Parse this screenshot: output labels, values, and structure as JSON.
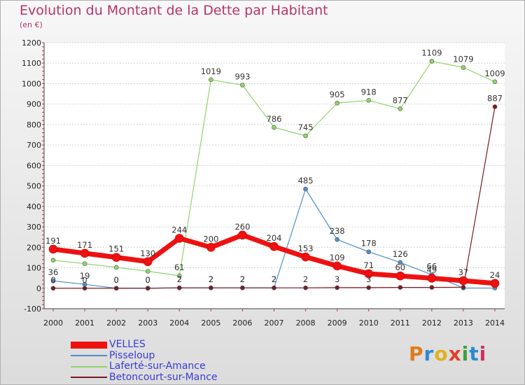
{
  "title": "Evolution du Montant de la Dette par Habitant",
  "unit_label": "(en €)",
  "logo": {
    "text": "Proxiti",
    "colors": [
      "#e07b1a",
      "#2a8ad6",
      "#e0b020",
      "#e0402a",
      "#3aa040",
      "#2a8ad6",
      "#d03060"
    ]
  },
  "chart_data": {
    "type": "line",
    "title": "Evolution du Montant de la Dette par Habitant",
    "ylabel": "(en €)",
    "xlabel": "",
    "ylim": [
      -100,
      1200
    ],
    "yticks": [
      -100,
      0,
      100,
      200,
      300,
      400,
      500,
      600,
      700,
      800,
      900,
      1000,
      1100,
      1200
    ],
    "grid": "horizontal",
    "legend_position": "bottom-left",
    "categories": [
      "2000",
      "2001",
      "2002",
      "2003",
      "2004",
      "2005",
      "2006",
      "2007",
      "2008",
      "2009",
      "2010",
      "2011",
      "2012",
      "2013",
      "2014"
    ],
    "series": [
      {
        "name": "Pisseloup",
        "color": "#4f8fc8",
        "width": 1.2,
        "values": [
          36,
          19,
          0,
          0,
          2,
          2,
          2,
          2,
          485,
          238,
          178,
          126,
          66,
          1,
          1
        ],
        "labels": [
          "36",
          "19",
          "0",
          "0",
          "2",
          "2",
          "2",
          "2",
          "485",
          "238",
          "178",
          "126",
          "66",
          "",
          ""
        ]
      },
      {
        "name": "Laferté-sur-Amance",
        "color": "#8fd46a",
        "width": 1.2,
        "values": [
          137,
          120,
          102,
          83,
          61,
          1019,
          993,
          786,
          745,
          905,
          918,
          877,
          1109,
          1079,
          1009
        ],
        "labels": [
          "",
          "",
          "",
          "",
          "61",
          "1019",
          "993",
          "786",
          "745",
          "905",
          "918",
          "877",
          "1109",
          "1079",
          "1009"
        ]
      },
      {
        "name": "Betoncourt-sur-Mance",
        "color": "#7a1a24",
        "width": 1.2,
        "values": [
          0,
          0,
          0,
          0,
          2,
          2,
          2,
          2,
          2,
          3,
          3,
          4,
          4,
          5,
          887
        ],
        "labels": [
          "0",
          "0",
          "0",
          "0",
          "2",
          "2",
          "2",
          "2",
          "2",
          "3",
          "3",
          "",
          "",
          "",
          "887"
        ]
      },
      {
        "name": "VELLES",
        "color": "#ee1111",
        "width": 7,
        "values": [
          191,
          171,
          151,
          130,
          244,
          200,
          260,
          204,
          153,
          109,
          71,
          60,
          49,
          37,
          24
        ],
        "labels": [
          "191",
          "171",
          "151",
          "130",
          "244",
          "200",
          "260",
          "204",
          "153",
          "109",
          "71",
          "60",
          "49",
          "37",
          "24"
        ]
      }
    ],
    "legend": [
      "VELLES",
      "Pisseloup",
      "Laferté-sur-Amance",
      "Betoncourt-sur-Mance"
    ]
  }
}
